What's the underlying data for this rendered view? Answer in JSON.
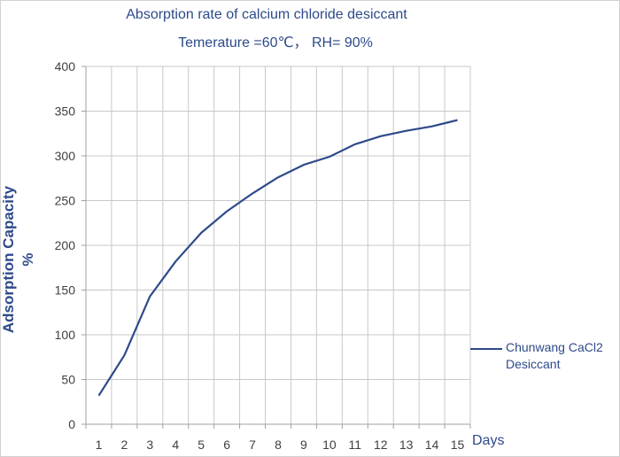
{
  "chart_data": {
    "type": "line",
    "title": "Absorption rate of calcium chloride desiccant",
    "subtitle": "Temerature =60℃， RH= 90%",
    "xlabel": "Days",
    "ylabel_line1": "Adsorption Capacity",
    "ylabel_line2": "%",
    "x": [
      1,
      2,
      3,
      4,
      5,
      6,
      7,
      8,
      9,
      10,
      11,
      12,
      13,
      14,
      15
    ],
    "ylim": [
      0,
      400
    ],
    "yticks": [
      0,
      50,
      100,
      150,
      200,
      250,
      300,
      350,
      400
    ],
    "grid": "vertical and horizontal",
    "legend_position": "right",
    "series": [
      {
        "name": "Chunwang CaCl2 Desiccant",
        "color": "#2e4a8a",
        "values": [
          32,
          77,
          143,
          182,
          214,
          238,
          258,
          276,
          290,
          299,
          313,
          322,
          328,
          333,
          340
        ]
      }
    ]
  }
}
